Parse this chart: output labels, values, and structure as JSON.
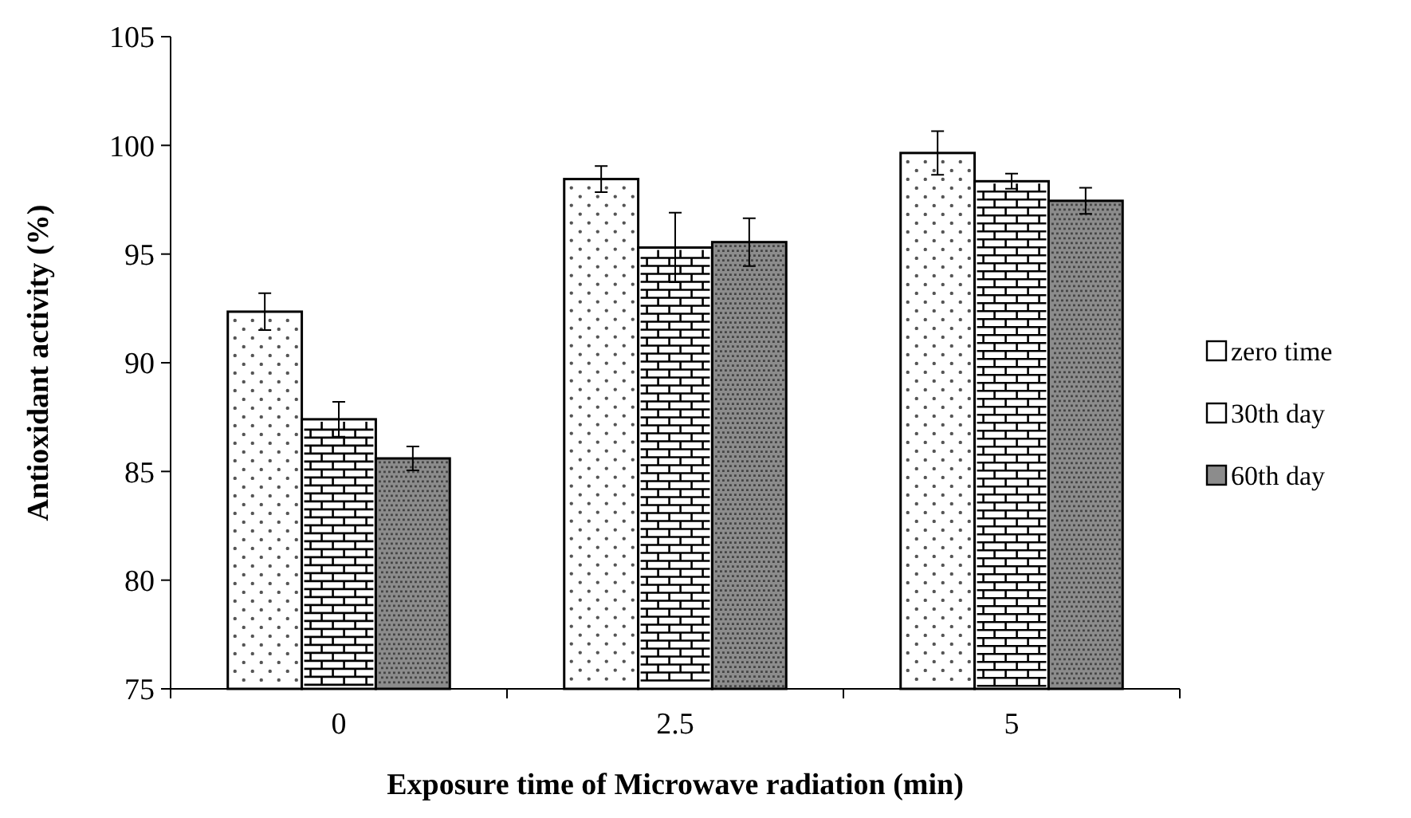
{
  "chart_data": {
    "type": "bar",
    "xlabel": "Exposure time of Microwave radiation (min)",
    "ylabel": "Antioxidant activity (%)",
    "categories": [
      "0",
      "2.5",
      "5"
    ],
    "series": [
      {
        "name": "zero time",
        "color": "#ffffff",
        "values": [
          92.35,
          98.45,
          99.65
        ],
        "errors": [
          0.85,
          0.6,
          1.0
        ]
      },
      {
        "name": "30th day",
        "color": "#ffffff",
        "values": [
          87.4,
          95.3,
          98.35
        ],
        "errors": [
          0.8,
          1.6,
          0.35
        ]
      },
      {
        "name": "60th day",
        "color": "#8c8c8c",
        "values": [
          85.6,
          95.55,
          97.45
        ],
        "errors": [
          0.55,
          1.1,
          0.6
        ]
      }
    ],
    "ylim": [
      75,
      105
    ],
    "yticks": [
      75,
      80,
      85,
      90,
      95,
      100,
      105
    ],
    "grid": false,
    "legend": "right"
  }
}
